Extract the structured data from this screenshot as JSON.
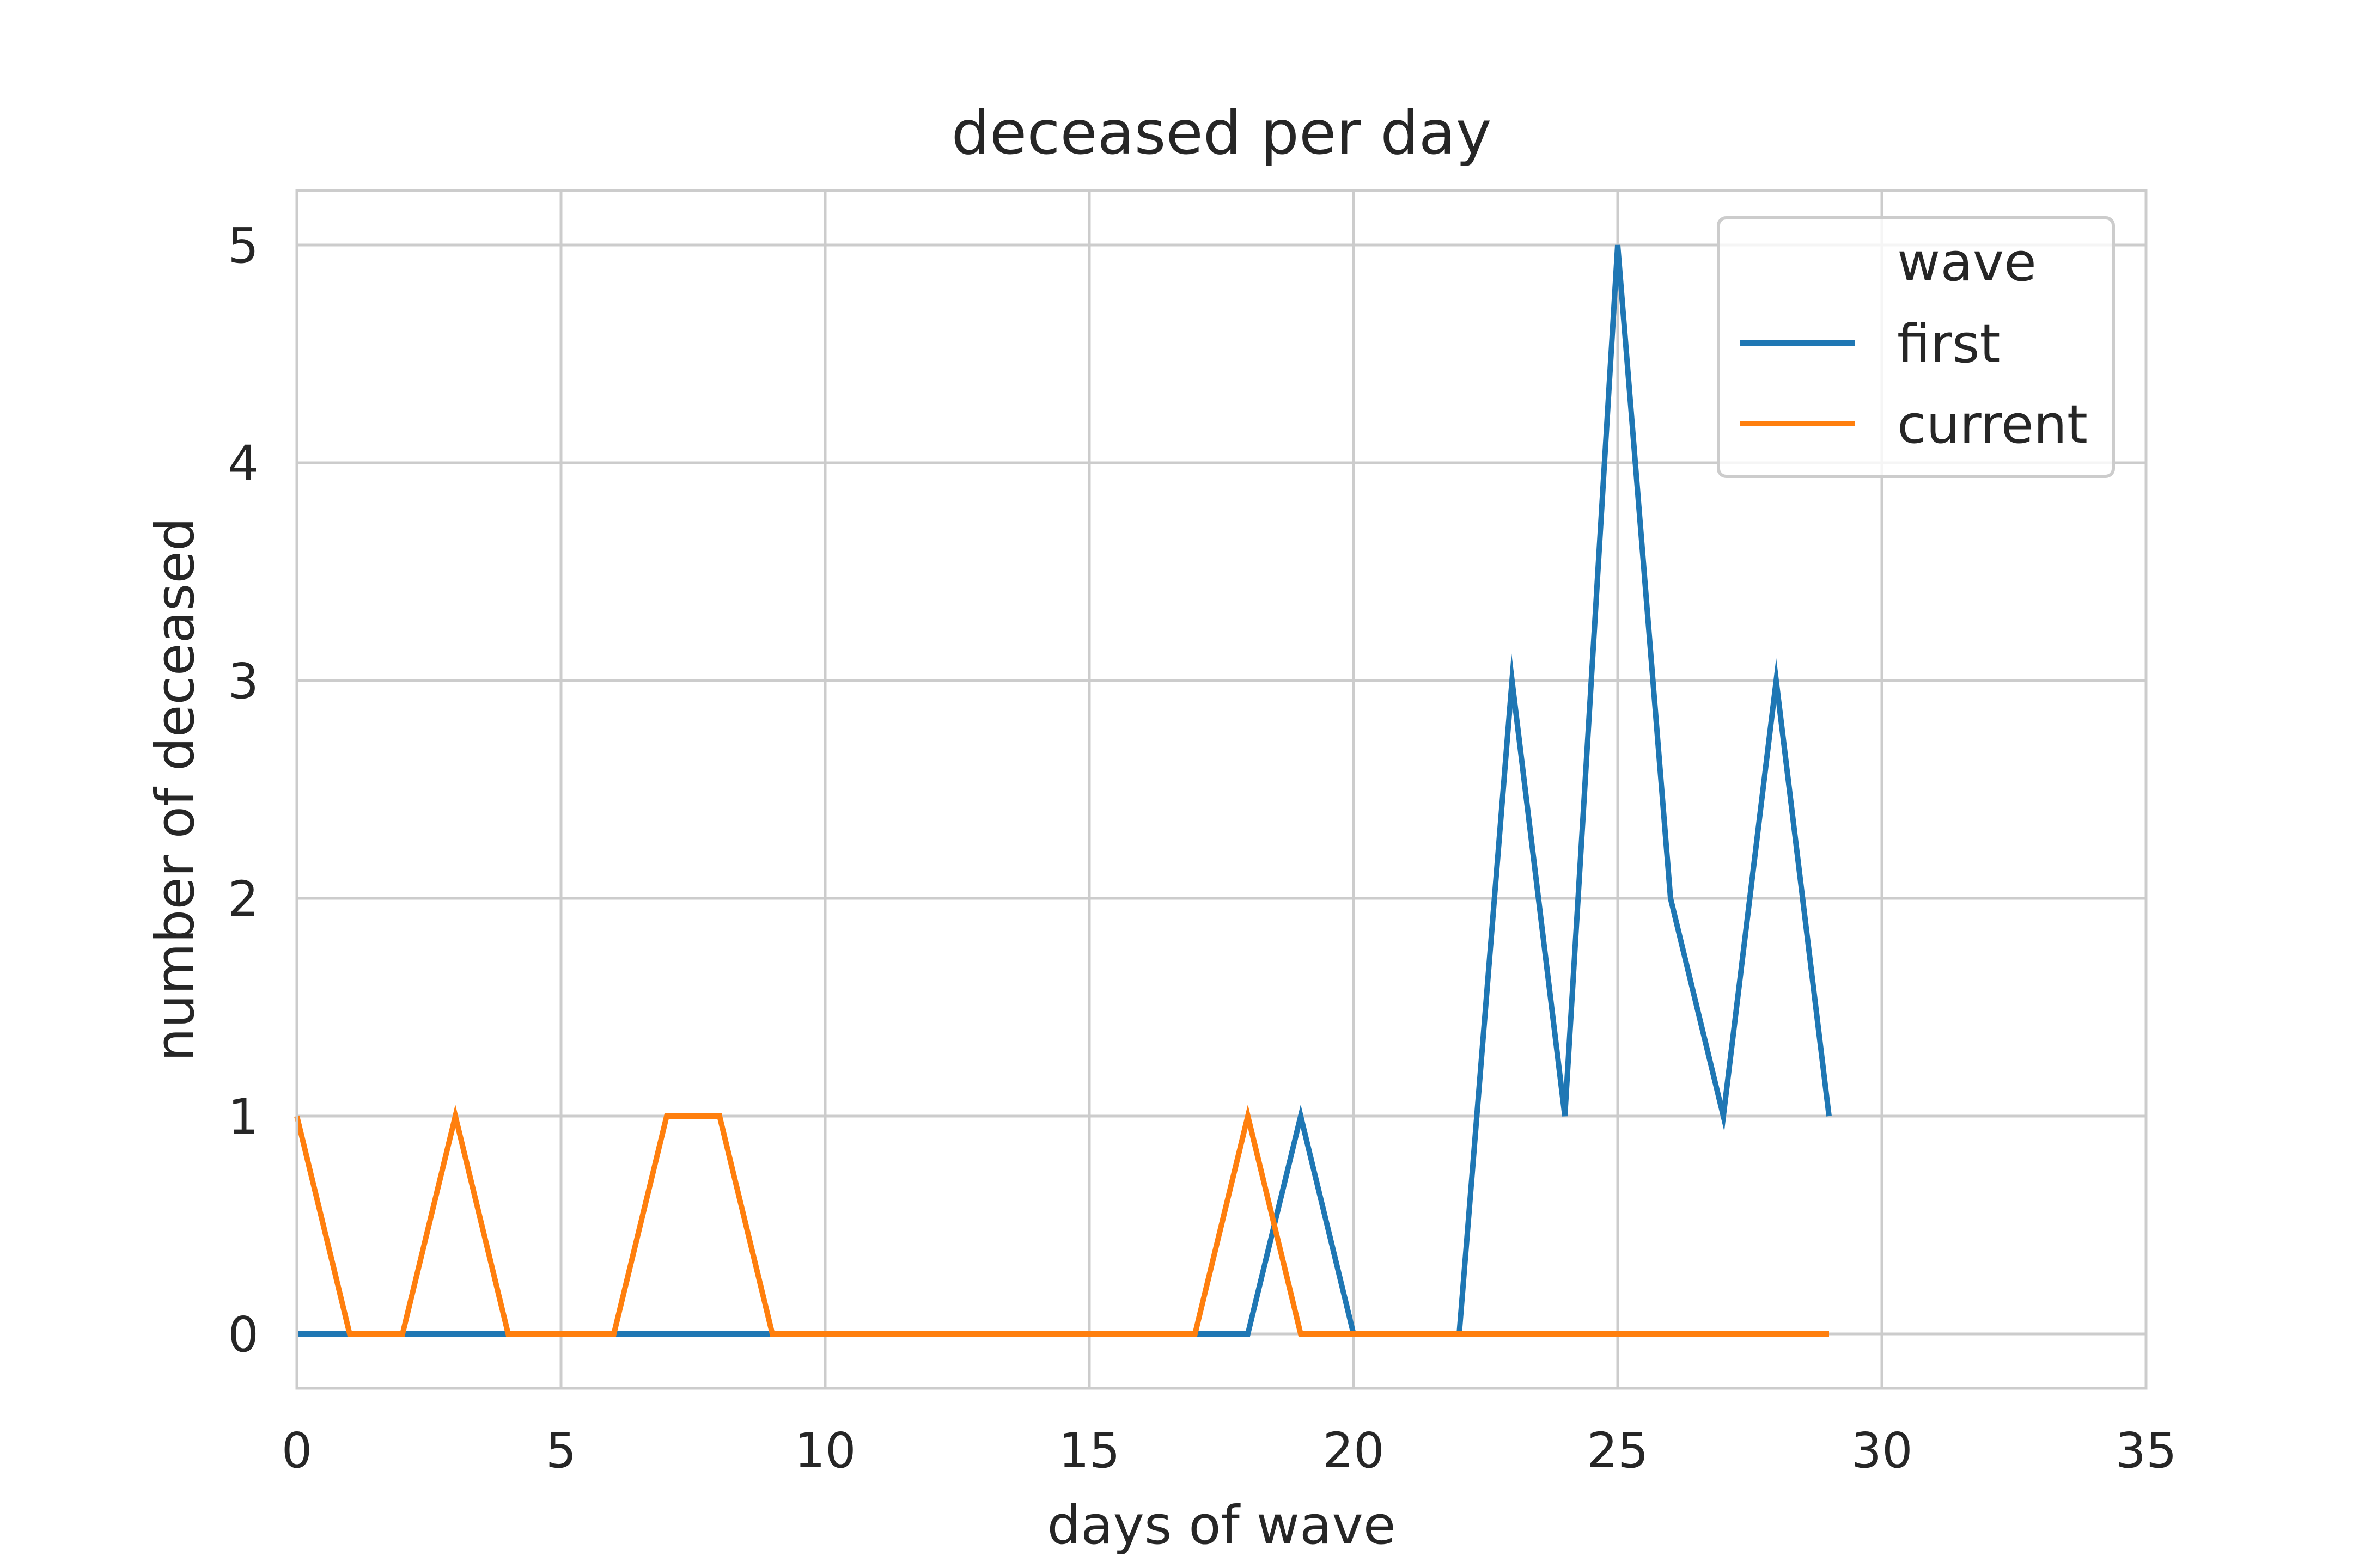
{
  "chart_data": {
    "type": "line",
    "title": "deceased per day",
    "xlabel": "days of wave",
    "ylabel": "number of deceased",
    "xlim": [
      0,
      35
    ],
    "ylim": [
      -0.25,
      5.25
    ],
    "xticks": [
      0,
      5,
      10,
      15,
      20,
      25,
      30,
      35
    ],
    "yticks": [
      0,
      1,
      2,
      3,
      4,
      5
    ],
    "grid": true,
    "legend": {
      "title": "wave",
      "placement": "top-right"
    },
    "x": [
      0,
      1,
      2,
      3,
      4,
      5,
      6,
      7,
      8,
      9,
      10,
      11,
      12,
      13,
      14,
      15,
      16,
      17,
      18,
      19,
      20,
      21,
      22,
      23,
      24,
      25,
      26,
      27,
      28,
      29
    ],
    "series": [
      {
        "name": "first",
        "color": "#1f77b4",
        "values": [
          0,
          0,
          0,
          0,
          0,
          0,
          0,
          0,
          0,
          0,
          0,
          0,
          0,
          0,
          0,
          0,
          0,
          0,
          0,
          1,
          0,
          0,
          0,
          3,
          1,
          5,
          2,
          1,
          3,
          1
        ]
      },
      {
        "name": "current",
        "color": "#ff7f0e",
        "values": [
          1,
          0,
          0,
          1,
          0,
          0,
          0,
          1,
          1,
          0,
          0,
          0,
          0,
          0,
          0,
          0,
          0,
          0,
          1,
          0,
          0,
          0,
          0,
          0,
          0,
          0,
          0,
          0,
          0,
          0
        ]
      }
    ]
  }
}
